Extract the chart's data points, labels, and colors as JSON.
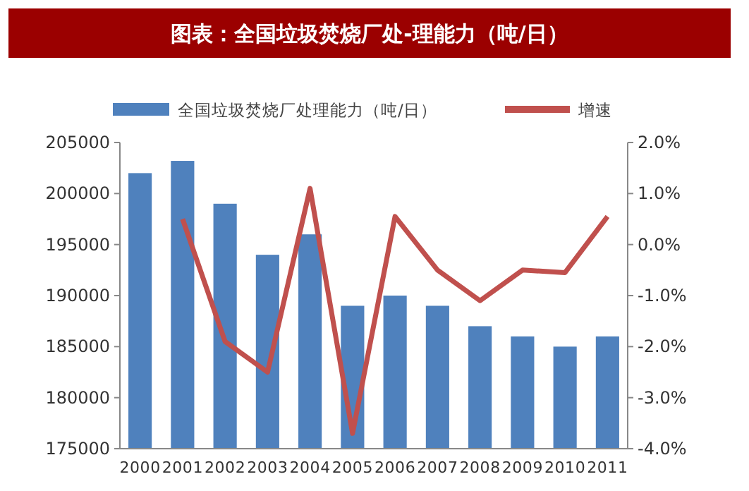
{
  "chart_data": {
    "type": "bar",
    "title": "图表：全国垃圾焚烧厂处-理能力（吨/日）",
    "categories": [
      "2000",
      "2001",
      "2002",
      "2003",
      "2004",
      "2005",
      "2006",
      "2007",
      "2008",
      "2009",
      "2010",
      "2011"
    ],
    "series": [
      {
        "name": "全国垃圾焚烧厂处理能力（吨/日）",
        "color": "#4f81bd",
        "values": [
          202000,
          203200,
          199000,
          194000,
          196000,
          189000,
          190000,
          189000,
          187000,
          186000,
          185000,
          186000
        ]
      },
      {
        "name": "增速",
        "type": "line",
        "axis": "y2",
        "color": "#c0504d",
        "values": [
          null,
          0.5,
          -1.9,
          -2.5,
          1.1,
          -3.7,
          0.55,
          -0.5,
          -1.1,
          -0.5,
          -0.55,
          0.55
        ]
      }
    ],
    "ylim": [
      175000,
      205000
    ],
    "yticks": [
      175000,
      180000,
      185000,
      190000,
      195000,
      200000,
      205000
    ],
    "y2lim": [
      -4,
      2
    ],
    "y2ticks": [
      {
        "value": -4,
        "label": "-4.0%"
      },
      {
        "value": -3,
        "label": "-3.0%"
      },
      {
        "value": -2,
        "label": "-2.0%"
      },
      {
        "value": -1,
        "label": "-1.0%"
      },
      {
        "value": 0,
        "label": "0.0%"
      },
      {
        "value": 1,
        "label": "1.0%"
      },
      {
        "value": 2,
        "label": "2.0%"
      }
    ],
    "legend": "top",
    "grid": false,
    "marker": "none",
    "line_style": "solid"
  }
}
